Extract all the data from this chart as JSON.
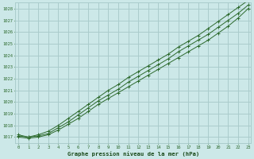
{
  "title": "Graphe pression niveau de la mer (hPa)",
  "bg_color": "#cce8e8",
  "grid_color": "#aacccc",
  "line_color": "#2d6a2d",
  "marker_color": "#2d6a2d",
  "axis_label_color": "#1a4a1a",
  "tick_color": "#2d6a2d",
  "x_ticks": [
    0,
    1,
    2,
    3,
    4,
    5,
    6,
    7,
    8,
    9,
    10,
    11,
    12,
    13,
    14,
    15,
    16,
    17,
    18,
    19,
    20,
    21,
    22,
    23
  ],
  "xlim": [
    -0.3,
    23.3
  ],
  "ylim": [
    1016.5,
    1028.5
  ],
  "y_ticks": [
    1017,
    1018,
    1019,
    1020,
    1021,
    1022,
    1023,
    1024,
    1025,
    1026,
    1027,
    1028
  ],
  "series1": [
    1017.0,
    1016.9,
    1017.0,
    1017.2,
    1017.6,
    1018.1,
    1018.6,
    1019.2,
    1019.8,
    1020.3,
    1020.8,
    1021.3,
    1021.8,
    1022.3,
    1022.8,
    1023.3,
    1023.8,
    1024.3,
    1024.8,
    1025.3,
    1025.9,
    1026.5,
    1027.2,
    1028.0
  ],
  "series2": [
    1017.1,
    1017.0,
    1017.1,
    1017.3,
    1017.8,
    1018.3,
    1018.9,
    1019.5,
    1020.1,
    1020.6,
    1021.1,
    1021.7,
    1022.2,
    1022.7,
    1023.2,
    1023.7,
    1024.3,
    1024.8,
    1025.3,
    1025.8,
    1026.4,
    1027.0,
    1027.6,
    1028.3
  ],
  "series3": [
    1017.2,
    1017.0,
    1017.2,
    1017.5,
    1018.0,
    1018.6,
    1019.2,
    1019.8,
    1020.4,
    1021.0,
    1021.5,
    1022.1,
    1022.6,
    1023.1,
    1023.6,
    1024.1,
    1024.7,
    1025.2,
    1025.7,
    1026.3,
    1026.9,
    1027.5,
    1028.1,
    1028.7
  ]
}
